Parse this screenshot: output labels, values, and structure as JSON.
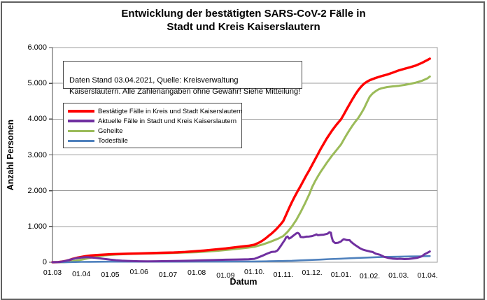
{
  "window": {
    "background": "#ffffff",
    "frame_border_color": "#606060"
  },
  "chart_data": {
    "type": "line",
    "title": "Entwicklung der bestätigten SARS-CoV-2 Fälle in\nStadt und Kreis Kaiserslautern",
    "annotation": "Daten Stand 03.04.2021, Quelle: Kreisverwaltung\nKaiserslautern. Alle Zahlenangaben ohne Gewähr! Siehe Mitteilung!",
    "xlabel": "Datum",
    "ylabel": "Anzahl Personen",
    "ylim": [
      0,
      6000
    ],
    "ytick_step": 1000,
    "yticks": [
      "0",
      "1.000",
      "2.000",
      "3.000",
      "4.000",
      "5.000",
      "6.000"
    ],
    "xticks": [
      "01.03",
      "01.04",
      "01.05",
      "01.06",
      "01.07",
      "01.08",
      "01.09",
      "01.10.",
      "01.11.",
      "01.12.",
      "01.01.",
      "01.02.",
      "01.03.",
      "01.04."
    ],
    "x_unit": "months since 01.03.2020 (tick spacing = 1 month)",
    "grid": true,
    "legend_position": "upper-left",
    "gridline_color": "#9c9c9c",
    "series": [
      {
        "id": "bestaetigte-faelle",
        "name": "Bestätigte Fälle in Kreis und Stadt Kaiserslautern",
        "color": "#ff0000",
        "points": [
          [
            0,
            0
          ],
          [
            0.2,
            3
          ],
          [
            0.4,
            25
          ],
          [
            0.55,
            55
          ],
          [
            0.7,
            95
          ],
          [
            0.85,
            125
          ],
          [
            1,
            148
          ],
          [
            1.15,
            170
          ],
          [
            1.3,
            185
          ],
          [
            1.5,
            200
          ],
          [
            1.7,
            210
          ],
          [
            2,
            222
          ],
          [
            2.3,
            231
          ],
          [
            2.6,
            239
          ],
          [
            3,
            247
          ],
          [
            3.4,
            255
          ],
          [
            3.8,
            263
          ],
          [
            4.2,
            272
          ],
          [
            4.6,
            287
          ],
          [
            5,
            310
          ],
          [
            5.25,
            326
          ],
          [
            5.5,
            345
          ],
          [
            5.75,
            365
          ],
          [
            6,
            385
          ],
          [
            6.2,
            405
          ],
          [
            6.4,
            425
          ],
          [
            6.6,
            443
          ],
          [
            6.8,
            460
          ],
          [
            7,
            490
          ],
          [
            7.1,
            525
          ],
          [
            7.2,
            565
          ],
          [
            7.3,
            615
          ],
          [
            7.4,
            675
          ],
          [
            7.5,
            740
          ],
          [
            7.6,
            805
          ],
          [
            7.7,
            880
          ],
          [
            7.8,
            960
          ],
          [
            7.9,
            1050
          ],
          [
            8,
            1150
          ],
          [
            8.1,
            1330
          ],
          [
            8.2,
            1510
          ],
          [
            8.3,
            1680
          ],
          [
            8.4,
            1840
          ],
          [
            8.5,
            1990
          ],
          [
            8.6,
            2130
          ],
          [
            8.7,
            2280
          ],
          [
            8.8,
            2430
          ],
          [
            8.9,
            2570
          ],
          [
            9,
            2720
          ],
          [
            9.1,
            2870
          ],
          [
            9.2,
            3020
          ],
          [
            9.3,
            3170
          ],
          [
            9.4,
            3310
          ],
          [
            9.5,
            3450
          ],
          [
            9.6,
            3570
          ],
          [
            9.7,
            3690
          ],
          [
            9.8,
            3800
          ],
          [
            9.9,
            3900
          ],
          [
            10,
            3990
          ],
          [
            10.1,
            4130
          ],
          [
            10.2,
            4280
          ],
          [
            10.3,
            4420
          ],
          [
            10.4,
            4560
          ],
          [
            10.5,
            4690
          ],
          [
            10.6,
            4810
          ],
          [
            10.7,
            4910
          ],
          [
            10.8,
            4990
          ],
          [
            10.9,
            5045
          ],
          [
            11,
            5090
          ],
          [
            11.2,
            5150
          ],
          [
            11.4,
            5200
          ],
          [
            11.6,
            5245
          ],
          [
            11.8,
            5300
          ],
          [
            12,
            5360
          ],
          [
            12.2,
            5405
          ],
          [
            12.4,
            5450
          ],
          [
            12.6,
            5500
          ],
          [
            12.8,
            5570
          ],
          [
            13,
            5655
          ],
          [
            13.08,
            5690
          ]
        ]
      },
      {
        "id": "aktuelle-faelle",
        "name": "Aktuelle Fälle in Stadt und Kreis Kaiserslautern",
        "color": "#7030a0",
        "points": [
          [
            0,
            0
          ],
          [
            0.25,
            8
          ],
          [
            0.45,
            35
          ],
          [
            0.6,
            70
          ],
          [
            0.75,
            100
          ],
          [
            0.9,
            122
          ],
          [
            1.05,
            135
          ],
          [
            1.2,
            140
          ],
          [
            1.35,
            133
          ],
          [
            1.5,
            122
          ],
          [
            1.65,
            108
          ],
          [
            1.8,
            92
          ],
          [
            2,
            73
          ],
          [
            2.2,
            57
          ],
          [
            2.4,
            45
          ],
          [
            2.6,
            37
          ],
          [
            2.8,
            31
          ],
          [
            3,
            27
          ],
          [
            3.3,
            24
          ],
          [
            3.6,
            27
          ],
          [
            4,
            32
          ],
          [
            4.4,
            38
          ],
          [
            4.8,
            44
          ],
          [
            5.2,
            52
          ],
          [
            5.6,
            61
          ],
          [
            6,
            70
          ],
          [
            6.4,
            77
          ],
          [
            6.8,
            85
          ],
          [
            7,
            95
          ],
          [
            7.15,
            140
          ],
          [
            7.3,
            190
          ],
          [
            7.45,
            245
          ],
          [
            7.6,
            290
          ],
          [
            7.72,
            295
          ],
          [
            7.8,
            330
          ],
          [
            7.9,
            440
          ],
          [
            8,
            560
          ],
          [
            8.05,
            620
          ],
          [
            8.1,
            700
          ],
          [
            8.15,
            720
          ],
          [
            8.2,
            660
          ],
          [
            8.25,
            680
          ],
          [
            8.35,
            745
          ],
          [
            8.45,
            805
          ],
          [
            8.5,
            820
          ],
          [
            8.55,
            795
          ],
          [
            8.6,
            705
          ],
          [
            8.7,
            700
          ],
          [
            8.8,
            715
          ],
          [
            8.9,
            720
          ],
          [
            9,
            730
          ],
          [
            9.1,
            760
          ],
          [
            9.15,
            780
          ],
          [
            9.2,
            755
          ],
          [
            9.3,
            765
          ],
          [
            9.4,
            770
          ],
          [
            9.5,
            790
          ],
          [
            9.55,
            805
          ],
          [
            9.6,
            840
          ],
          [
            9.65,
            825
          ],
          [
            9.68,
            700
          ],
          [
            9.72,
            590
          ],
          [
            9.8,
            535
          ],
          [
            9.9,
            545
          ],
          [
            10,
            580
          ],
          [
            10.05,
            620
          ],
          [
            10.1,
            645
          ],
          [
            10.2,
            620
          ],
          [
            10.3,
            615
          ],
          [
            10.35,
            570
          ],
          [
            10.45,
            505
          ],
          [
            10.55,
            450
          ],
          [
            10.65,
            395
          ],
          [
            10.75,
            355
          ],
          [
            10.85,
            330
          ],
          [
            11,
            300
          ],
          [
            11.1,
            285
          ],
          [
            11.2,
            240
          ],
          [
            11.35,
            210
          ],
          [
            11.5,
            150
          ],
          [
            11.65,
            120
          ],
          [
            11.8,
            100
          ],
          [
            11.95,
            92
          ],
          [
            12.05,
            98
          ],
          [
            12.2,
            88
          ],
          [
            12.35,
            92
          ],
          [
            12.5,
            108
          ],
          [
            12.65,
            125
          ],
          [
            12.8,
            165
          ],
          [
            12.9,
            225
          ],
          [
            13,
            265
          ],
          [
            13.08,
            300
          ]
        ]
      },
      {
        "id": "geheilte",
        "name": "Geheilte",
        "color": "#9bbb59",
        "points": [
          [
            0,
            0
          ],
          [
            0.4,
            2
          ],
          [
            0.6,
            15
          ],
          [
            0.8,
            40
          ],
          [
            1,
            70
          ],
          [
            1.2,
            105
          ],
          [
            1.4,
            140
          ],
          [
            1.6,
            168
          ],
          [
            1.8,
            190
          ],
          [
            2,
            205
          ],
          [
            2.3,
            220
          ],
          [
            2.6,
            230
          ],
          [
            3,
            238
          ],
          [
            3.5,
            246
          ],
          [
            4,
            255
          ],
          [
            4.5,
            267
          ],
          [
            5,
            282
          ],
          [
            5.5,
            307
          ],
          [
            5.75,
            323
          ],
          [
            6,
            342
          ],
          [
            6.25,
            362
          ],
          [
            6.5,
            383
          ],
          [
            6.75,
            405
          ],
          [
            7,
            432
          ],
          [
            7.15,
            465
          ],
          [
            7.3,
            500
          ],
          [
            7.5,
            555
          ],
          [
            7.7,
            620
          ],
          [
            7.85,
            670
          ],
          [
            8,
            730
          ],
          [
            8.15,
            850
          ],
          [
            8.3,
            1000
          ],
          [
            8.45,
            1180
          ],
          [
            8.6,
            1400
          ],
          [
            8.75,
            1640
          ],
          [
            8.9,
            1900
          ],
          [
            9,
            2100
          ],
          [
            9.1,
            2260
          ],
          [
            9.2,
            2400
          ],
          [
            9.3,
            2530
          ],
          [
            9.4,
            2650
          ],
          [
            9.5,
            2770
          ],
          [
            9.6,
            2880
          ],
          [
            9.7,
            2990
          ],
          [
            9.8,
            3090
          ],
          [
            9.9,
            3190
          ],
          [
            10,
            3290
          ],
          [
            10.1,
            3430
          ],
          [
            10.2,
            3570
          ],
          [
            10.3,
            3700
          ],
          [
            10.4,
            3820
          ],
          [
            10.5,
            3930
          ],
          [
            10.6,
            4030
          ],
          [
            10.7,
            4160
          ],
          [
            10.8,
            4300
          ],
          [
            10.9,
            4470
          ],
          [
            11,
            4630
          ],
          [
            11.1,
            4720
          ],
          [
            11.2,
            4780
          ],
          [
            11.3,
            4830
          ],
          [
            11.4,
            4860
          ],
          [
            11.6,
            4895
          ],
          [
            11.8,
            4915
          ],
          [
            12,
            4930
          ],
          [
            12.2,
            4955
          ],
          [
            12.4,
            4985
          ],
          [
            12.6,
            5020
          ],
          [
            12.8,
            5070
          ],
          [
            13,
            5140
          ],
          [
            13.08,
            5190
          ]
        ]
      },
      {
        "id": "todesfaelle",
        "name": "Todesfälle",
        "color": "#4f81bd",
        "points": [
          [
            0,
            0
          ],
          [
            0.5,
            1
          ],
          [
            0.8,
            5
          ],
          [
            1,
            9
          ],
          [
            1.3,
            12
          ],
          [
            1.6,
            14
          ],
          [
            2,
            15
          ],
          [
            3,
            15
          ],
          [
            4,
            16
          ],
          [
            5,
            17
          ],
          [
            6,
            18
          ],
          [
            6.5,
            20
          ],
          [
            7,
            22
          ],
          [
            7.5,
            28
          ],
          [
            8,
            35
          ],
          [
            8.3,
            42
          ],
          [
            8.6,
            52
          ],
          [
            9,
            65
          ],
          [
            9.3,
            75
          ],
          [
            9.6,
            88
          ],
          [
            10,
            100
          ],
          [
            10.3,
            112
          ],
          [
            10.6,
            122
          ],
          [
            11,
            133
          ],
          [
            11.3,
            142
          ],
          [
            11.6,
            150
          ],
          [
            12,
            157
          ],
          [
            12.4,
            162
          ],
          [
            12.8,
            167
          ],
          [
            13.08,
            172
          ]
        ]
      }
    ]
  }
}
